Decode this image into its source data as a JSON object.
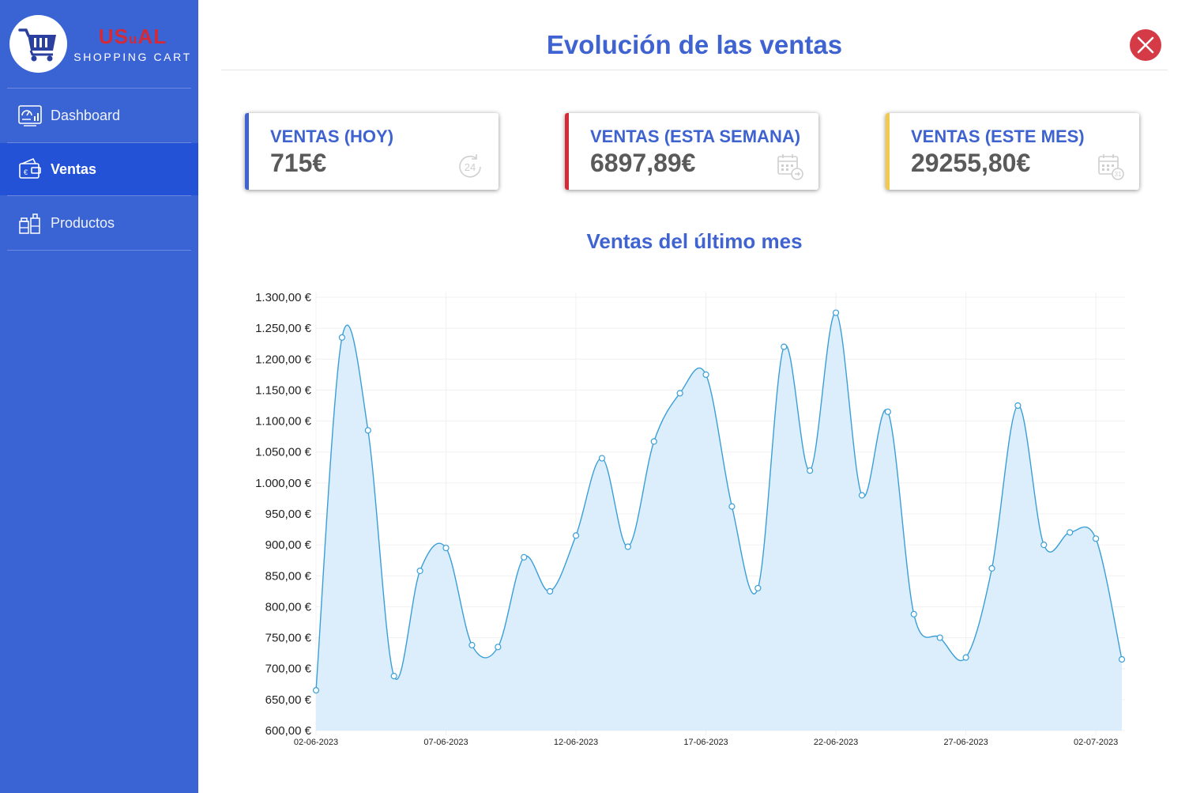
{
  "sidebar": {
    "brand": {
      "name_part1": "US",
      "name_part2": "u",
      "name_part3": "AL",
      "subtitle": "SHOPPING CART"
    },
    "items": [
      {
        "label": "Dashboard",
        "icon": "dashboard-icon",
        "active": false
      },
      {
        "label": "Ventas",
        "icon": "sales-wallet-icon",
        "active": true
      },
      {
        "label": "Productos",
        "icon": "products-icon",
        "active": false
      }
    ]
  },
  "header": {
    "title": "Evolución de las ventas",
    "close_icon": "close-icon"
  },
  "cards": [
    {
      "label": "VENTAS  (HOY)",
      "value": "715€",
      "accent": "#3f63d1",
      "icon": "24h-icon",
      "icon_text": "24"
    },
    {
      "label": "VENTAS  (ESTA SEMANA)",
      "value": "6897,89€",
      "accent": "#d42a38",
      "icon": "calendar-week-icon"
    },
    {
      "label": "VENTAS  (ESTE MES)",
      "value": "29255,80€",
      "accent": "#f2c94c",
      "icon": "calendar-month-icon"
    }
  ],
  "chart": {
    "title": "Ventas del último mes"
  },
  "chart_data": {
    "type": "area",
    "title": "Ventas del último mes",
    "xlabel": "",
    "ylabel": "",
    "x": [
      "02-06-2023",
      "03-06-2023",
      "04-06-2023",
      "05-06-2023",
      "06-06-2023",
      "07-06-2023",
      "08-06-2023",
      "09-06-2023",
      "10-06-2023",
      "11-06-2023",
      "12-06-2023",
      "13-06-2023",
      "14-06-2023",
      "15-06-2023",
      "16-06-2023",
      "17-06-2023",
      "18-06-2023",
      "19-06-2023",
      "20-06-2023",
      "21-06-2023",
      "22-06-2023",
      "23-06-2023",
      "24-06-2023",
      "25-06-2023",
      "26-06-2023",
      "27-06-2023",
      "28-06-2023",
      "29-06-2023",
      "30-06-2023",
      "01-07-2023",
      "02-07-2023",
      "03-07-2023"
    ],
    "x_ticks": [
      "02-06-2023",
      "07-06-2023",
      "12-06-2023",
      "17-06-2023",
      "22-06-2023",
      "27-06-2023",
      "02-07-2023"
    ],
    "values": [
      665,
      1235,
      1085,
      688,
      858,
      895,
      738,
      735,
      880,
      825,
      915,
      1040,
      897,
      1067,
      1145,
      1175,
      962,
      830,
      1220,
      1020,
      1275,
      980,
      1115,
      788,
      750,
      718,
      862,
      1125,
      900,
      920,
      910,
      715
    ],
    "y_ticks": [
      "600,00 €",
      "650,00 €",
      "700,00 €",
      "750,00 €",
      "800,00 €",
      "850,00 €",
      "900,00 €",
      "950,00 €",
      "1.000,00 €",
      "1.050,00 €",
      "1.100,00 €",
      "1.150,00 €",
      "1.200,00 €",
      "1.250,00 €",
      "1.300,00 €"
    ],
    "ylim": [
      600,
      1300
    ],
    "grid": true,
    "line_color": "#3a9fd8",
    "fill_color": "#dceefb"
  }
}
